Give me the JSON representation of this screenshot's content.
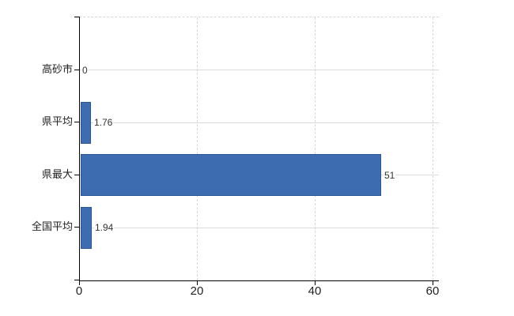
{
  "chart_data": {
    "type": "bar",
    "orientation": "horizontal",
    "title": "",
    "categories": [
      "高砂市",
      "県平均",
      "県最大",
      "全国平均"
    ],
    "values": [
      0,
      1.76,
      51,
      1.94
    ],
    "value_labels": [
      "0",
      "1.76",
      "51",
      "1.94"
    ],
    "x_ticks": [
      0,
      20,
      40,
      60
    ],
    "x_tick_labels": [
      "0",
      "20",
      "40",
      "60"
    ],
    "xlim": [
      0,
      61
    ],
    "grid": true,
    "legend": false,
    "colors": {
      "bar_fill": "#3d6cb0",
      "bar_border": "#2b5796",
      "axis_line": "#000000",
      "category_gridline": "#dadeda",
      "dashed_gridline": "#d6dad6",
      "tick_label": "#222222",
      "value_label": "#333333",
      "category_label": "#222222"
    }
  }
}
